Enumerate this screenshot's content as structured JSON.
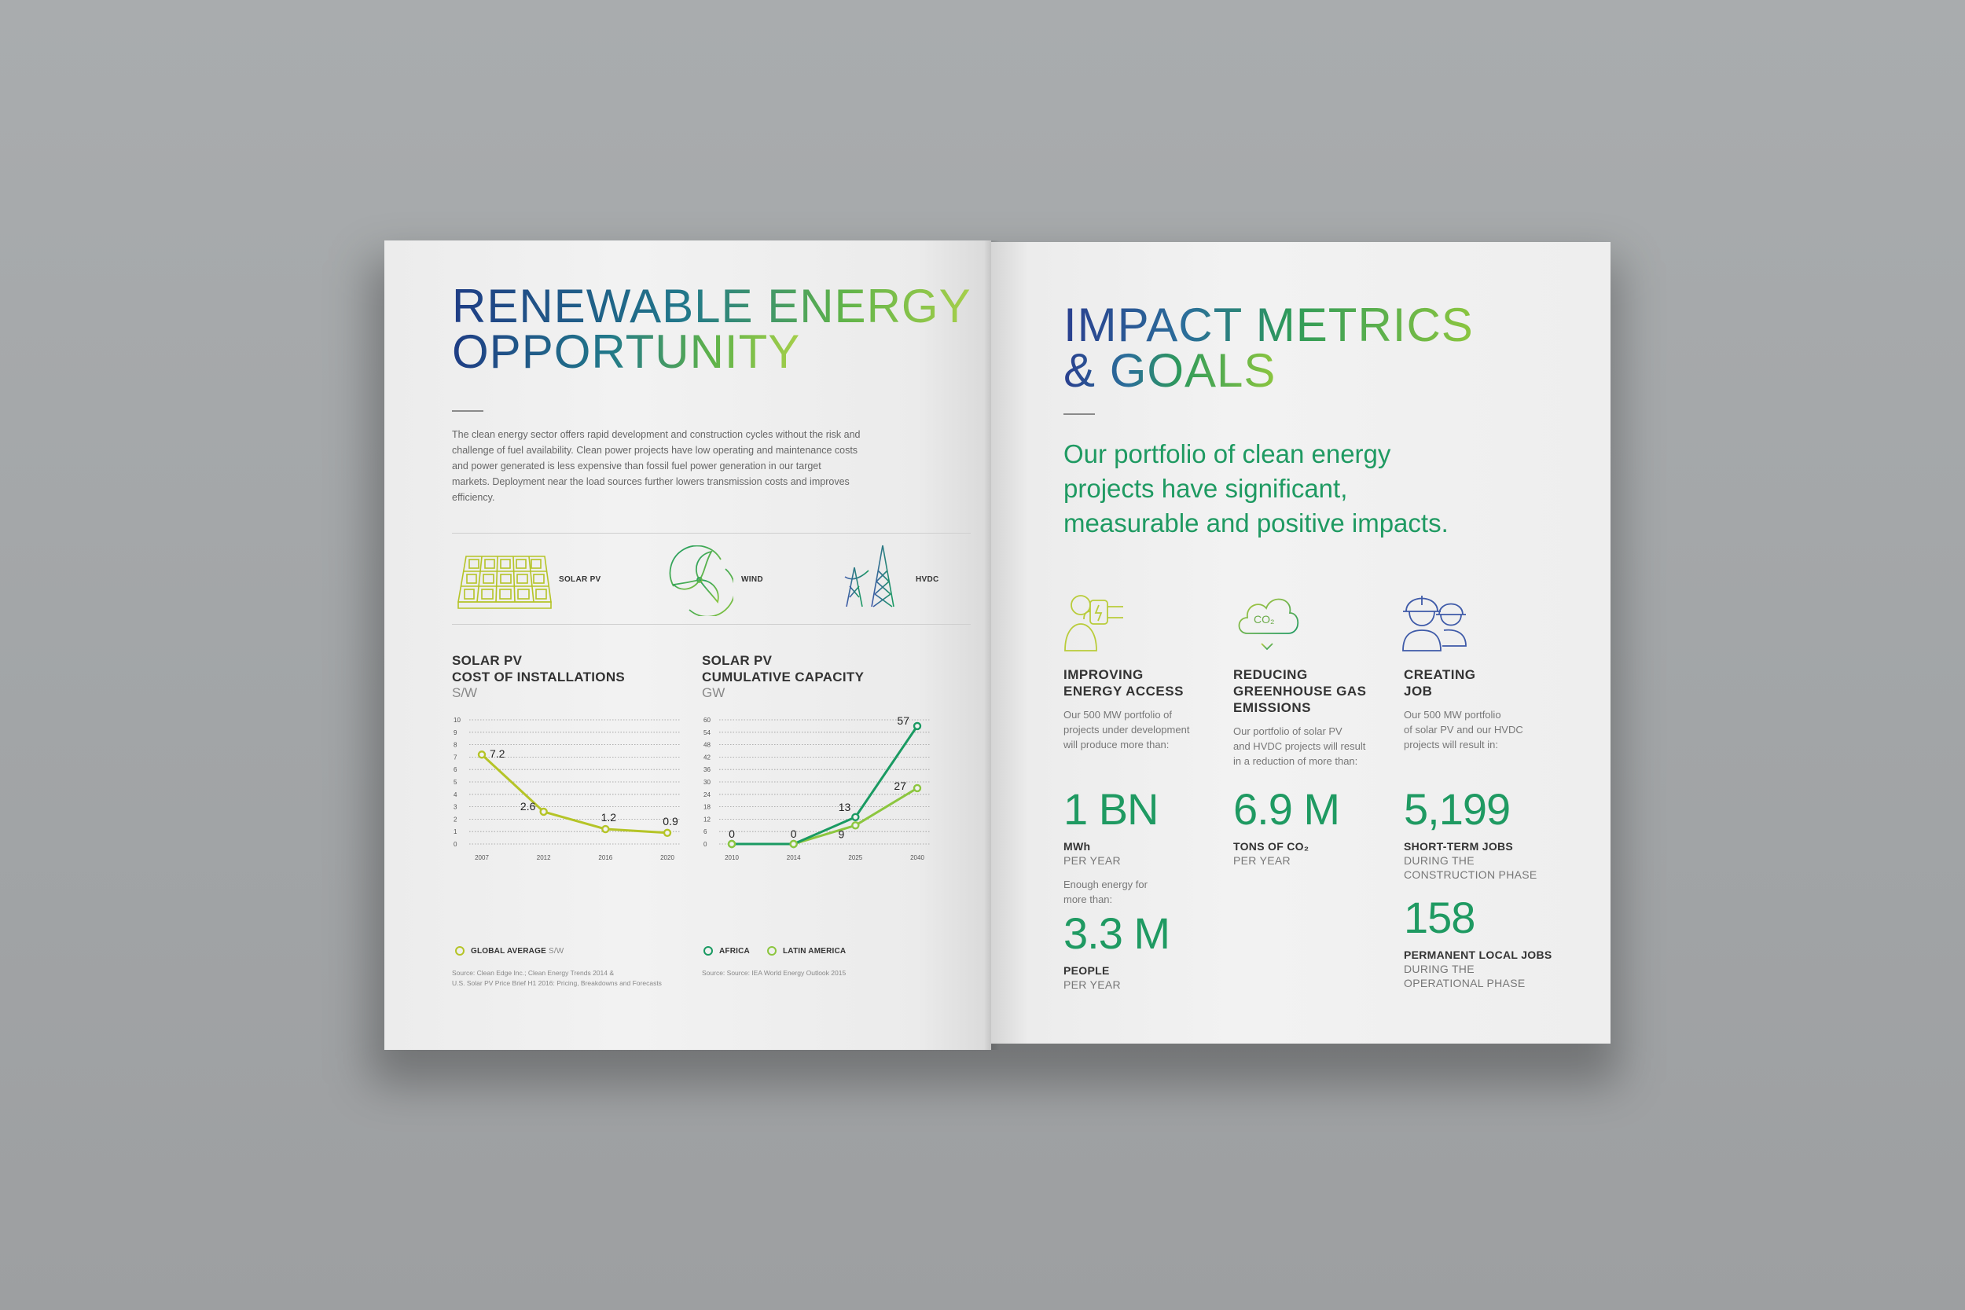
{
  "left_page": {
    "title_line1": "RENEWABLE ENERGY",
    "title_line2": "OPPORTUNITY",
    "body": "The clean energy sector offers rapid development and construction cycles without the risk and challenge of fuel availability. Clean power projects have low operating and maintenance costs and power generated is less expensive than fossil fuel power generation in our target markets. Deployment near the load sources further lowers transmission costs and improves efficiency.",
    "icons": [
      {
        "icon": "solar-panel-icon",
        "label": "SOLAR PV"
      },
      {
        "icon": "wind-turbine-icon",
        "label": "WIND"
      },
      {
        "icon": "transmission-tower-icon",
        "label": "HVDC"
      }
    ],
    "colors": {
      "lime": "#b5c427",
      "green": "#1a9a62",
      "light_green": "#8cc63f"
    }
  },
  "chart_data": [
    {
      "type": "line",
      "title_lines": [
        "SOLAR PV",
        "COST OF INSTALLATIONS"
      ],
      "unit": "S/W",
      "x": [
        "2007",
        "2012",
        "2016",
        "2020"
      ],
      "y_ticks": [
        "0",
        "1",
        "2",
        "3",
        "4",
        "5",
        "6",
        "7",
        "8",
        "9",
        "10"
      ],
      "ylim": [
        0,
        10
      ],
      "series": [
        {
          "name": "GLOBAL AVERAGE",
          "values": [
            7.2,
            2.6,
            1.2,
            0.9
          ],
          "labels": [
            "7.2",
            "2.6",
            "1.2",
            "0.9"
          ],
          "color": "#b5c427"
        }
      ],
      "legend": [
        {
          "label": "GLOBAL AVERAGE",
          "unit": "S/W"
        }
      ],
      "source": [
        "Source: Clean Edge Inc.; Clean Energy Trends 2014 &",
        "U.S. Solar PV Price Brief H1 2016: Pricing, Breakdowns and Forecasts"
      ],
      "grid": true
    },
    {
      "type": "line",
      "title_lines": [
        "SOLAR PV",
        "CUMULATIVE CAPACITY"
      ],
      "unit": "GW",
      "x": [
        "2010",
        "2014",
        "2025",
        "2040"
      ],
      "y_ticks": [
        "0",
        "6",
        "12",
        "18",
        "24",
        "30",
        "36",
        "42",
        "48",
        "54",
        "60"
      ],
      "ylim": [
        0,
        60
      ],
      "series": [
        {
          "name": "AFRICA",
          "values": [
            0,
            0,
            13,
            57
          ],
          "labels": [
            "0",
            "0",
            "13",
            "57"
          ],
          "color": "#1a9a62"
        },
        {
          "name": "LATIN AMERICA",
          "values": [
            0,
            0,
            9,
            27
          ],
          "labels": [
            "",
            "",
            "9",
            "27"
          ],
          "color": "#8cc63f"
        }
      ],
      "legend": [
        {
          "label": "AFRICA"
        },
        {
          "label": "LATIN AMERICA"
        }
      ],
      "source": [
        "Source: Source: IEA World Energy Outlook 2015"
      ],
      "grid": true
    }
  ],
  "right_page": {
    "title_line1": "IMPACT METRICS",
    "title_line2": "& GOALS",
    "intro_lines": [
      "Our portfolio of clean energy",
      "projects have significant,",
      "measurable and positive impacts."
    ],
    "metrics": [
      {
        "icon": "energy-access-icon",
        "head_lines": [
          "IMPROVING",
          "ENERGY ACCESS"
        ],
        "desc_lines": [
          "Our 500 MW portfolio of",
          "projects under development",
          "will produce more than:"
        ],
        "value": "1 BN",
        "unit_bold": "MWh",
        "unit_small": "PER YEAR",
        "extra_lines": [
          "Enough energy for",
          "more than:"
        ],
        "value2": "3.3 M",
        "unit2_bold": "PEOPLE",
        "unit2_small": "PER YEAR"
      },
      {
        "icon": "co2-cloud-icon",
        "icon_text": "CO₂",
        "head_lines": [
          "REDUCING",
          "GREENHOUSE GAS",
          "EMISSIONS"
        ],
        "desc_lines": [
          "Our portfolio of solar PV",
          "and HVDC projects will result",
          "in a reduction of more than:"
        ],
        "value": "6.9 M",
        "unit_bold": "TONS OF CO₂",
        "unit_small": "PER YEAR"
      },
      {
        "icon": "workers-icon",
        "head_lines": [
          "CREATING",
          "JOB"
        ],
        "desc_lines": [
          "Our 500 MW portfolio",
          "of solar PV and our HVDC",
          "projects will result in:"
        ],
        "value": "5,199",
        "unit_bold": "SHORT-TERM JOBS",
        "unit_small_lines": [
          "DURING THE",
          "CONSTRUCTION PHASE"
        ],
        "value2": "158",
        "unit2_bold": "PERMANENT LOCAL JOBS",
        "unit2_small_lines": [
          "DURING THE",
          "OPERATIONAL PHASE"
        ]
      }
    ],
    "colors": {
      "green": "#1f9a62",
      "lime_icon": "#b9cc3a",
      "blue_icon": "#3e5aa8"
    }
  }
}
